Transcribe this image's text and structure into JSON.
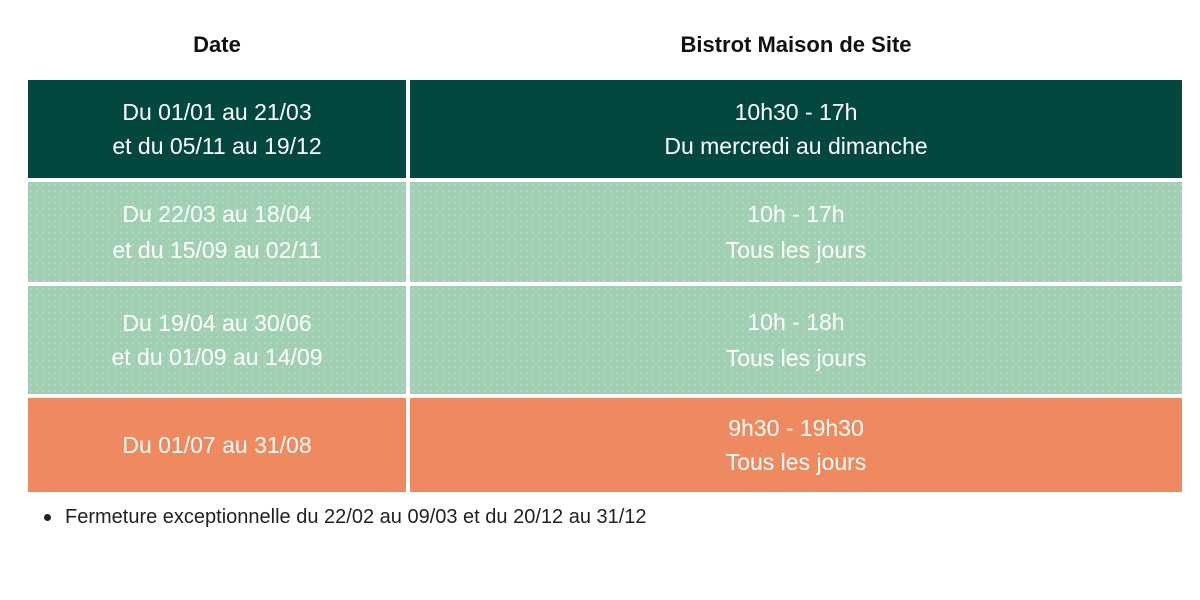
{
  "headers": {
    "date": "Date",
    "bistro": "Bistrot Maison de Site"
  },
  "rows": [
    {
      "date_lines": [
        "Du 01/01 au 21/03",
        "et du 05/11 au 19/12"
      ],
      "hours": "10h30 - 17h",
      "days": "Du mercredi au dimanche",
      "color": "#04473f"
    },
    {
      "date_lines": [
        "Du 22/03 au 18/04",
        "et du 15/09 au 02/11"
      ],
      "hours": "10h - 17h",
      "days": "Tous les jours",
      "color": "#a1cfb3"
    },
    {
      "date_lines": [
        "Du 19/04 au 30/06",
        "et du 01/09 au 14/09"
      ],
      "hours": "10h - 18h",
      "days": "Tous les jours",
      "color": "#a1cfb3"
    },
    {
      "date_lines": [
        "Du 01/07 au 31/08"
      ],
      "hours": "9h30 - 19h30",
      "days": "Tous les jours",
      "color": "#ef895f"
    }
  ],
  "note": "Fermeture exceptionnelle du 22/02 au 09/03 et du 20/12 au 31/12"
}
